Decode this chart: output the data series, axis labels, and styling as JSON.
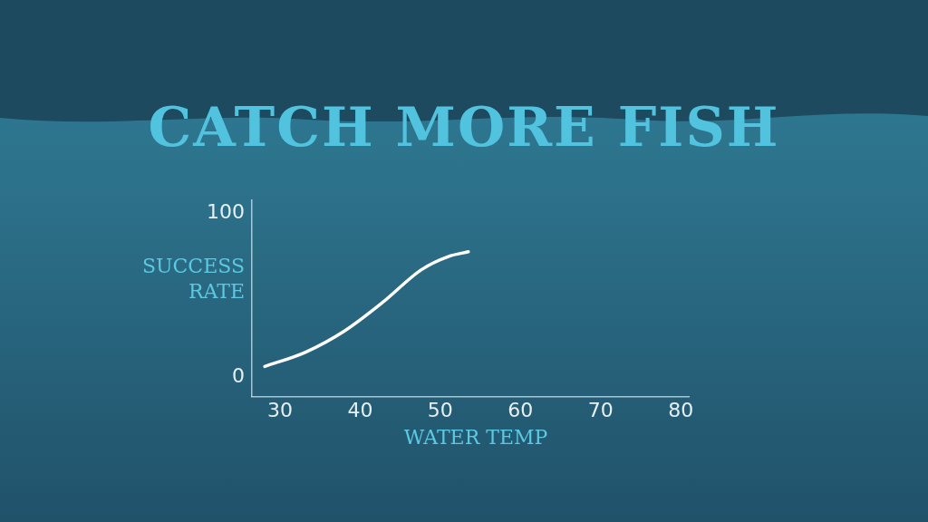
{
  "chart_data": {
    "type": "line",
    "title": "CATCH MORE FISH",
    "xlabel": "WATER TEMP",
    "ylabel": "SUCCESS RATE",
    "series": [
      {
        "color": "#ffffff",
        "x": [
          28.1,
          33.2,
          38,
          42.8,
          47.6,
          51,
          53.5
        ],
        "values": [
          6.4,
          15.2,
          28,
          45.6,
          65.5,
          73.7,
          76.6
        ]
      }
    ],
    "xlim": [
      26.5,
      81
    ],
    "xticks": [
      30,
      40,
      50,
      60,
      70,
      80
    ],
    "ylim": [
      -12,
      108
    ],
    "yticks": [
      0,
      100
    ],
    "grid": false,
    "legend": false,
    "marker": "none",
    "line_style": "solid"
  }
}
